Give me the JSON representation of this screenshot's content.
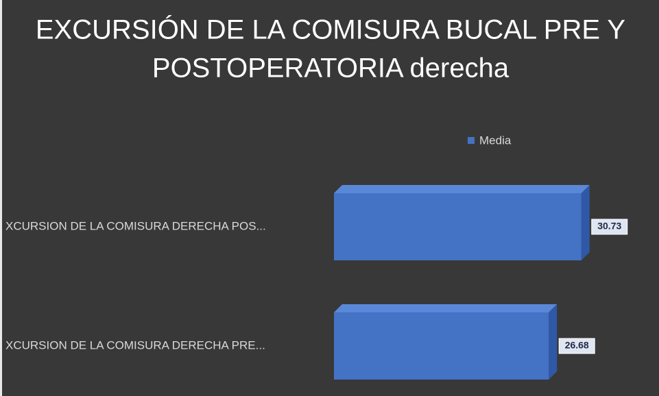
{
  "chart_data": {
    "type": "bar",
    "orientation": "horizontal",
    "title": [
      "EXCURSIÓN DE LA COMISURA BUCAL PRE Y",
      "POSTOPERATORIA derecha"
    ],
    "categories": [
      "XCURSION DE LA COMISURA DERECHA POS...",
      "XCURSION DE LA COMISURA DERECHA PRE..."
    ],
    "series": [
      {
        "name": "Media",
        "color": "#4472c4",
        "values": [
          30.73,
          26.68
        ]
      }
    ],
    "legend": "top"
  }
}
